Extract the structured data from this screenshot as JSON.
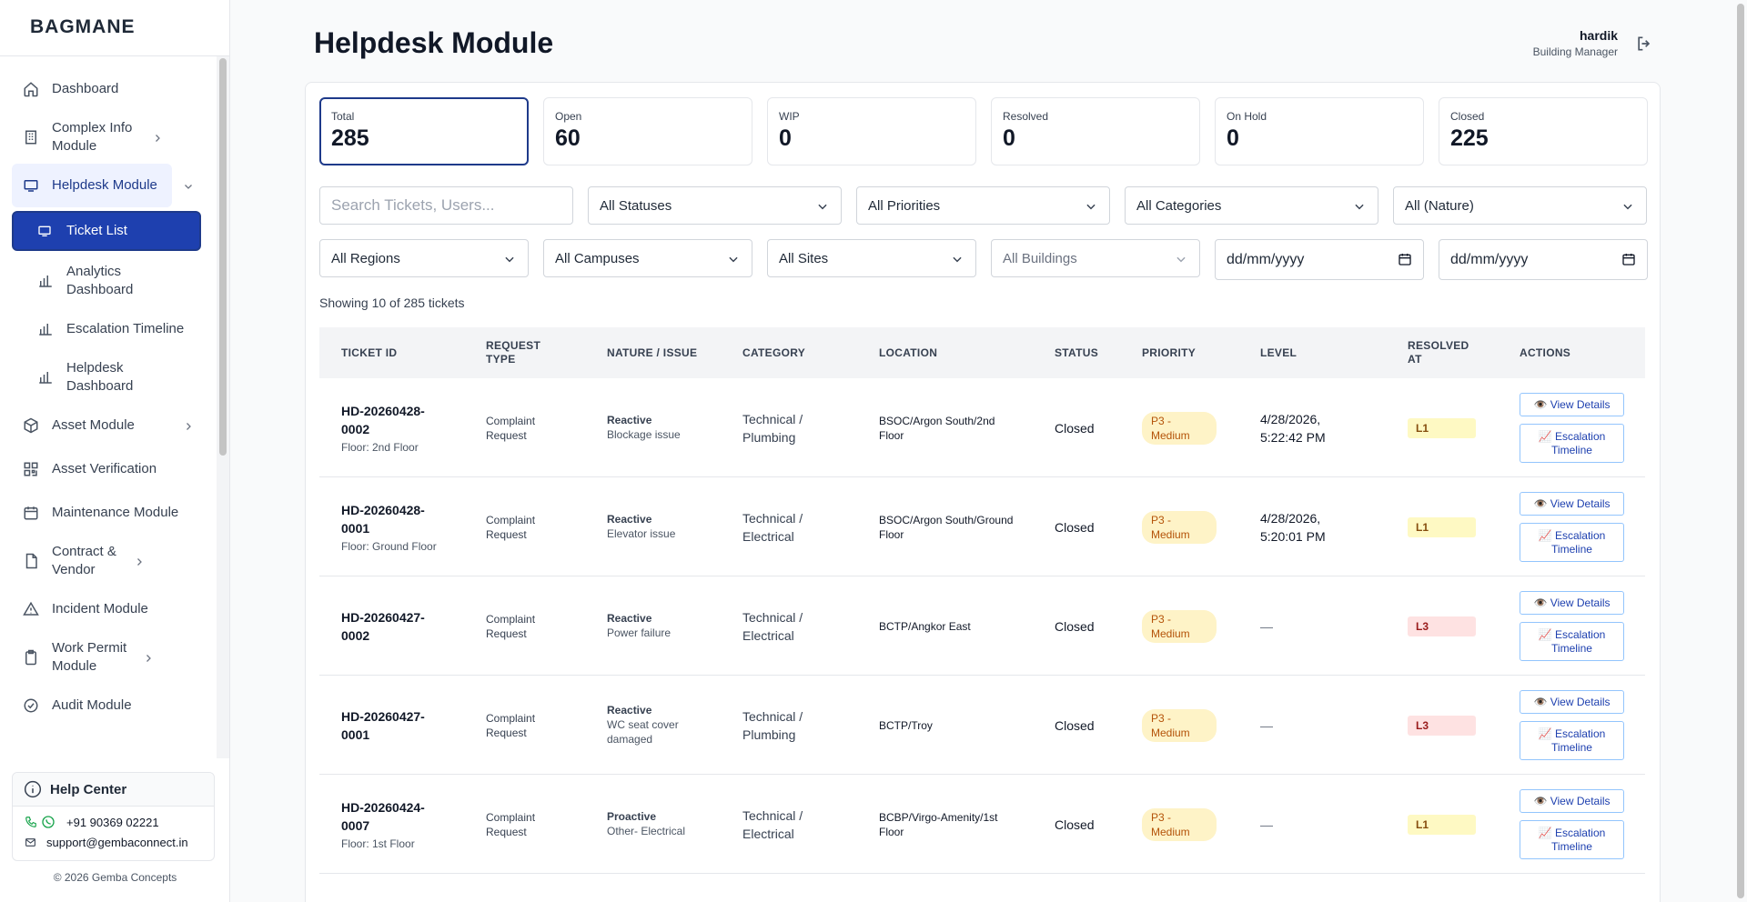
{
  "sidebar": {
    "brand": "BAGMANE",
    "items": [
      {
        "label": "Dashboard"
      },
      {
        "label": "Complex Info Module"
      },
      {
        "label": "Helpdesk Module"
      },
      {
        "label": "Asset Module"
      },
      {
        "label": "Asset Verification"
      },
      {
        "label": "Maintenance Module"
      },
      {
        "label": "Contract & Vendor"
      },
      {
        "label": "Incident Module"
      },
      {
        "label": "Work Permit Module"
      },
      {
        "label": "Audit Module"
      }
    ],
    "sub_items": [
      {
        "label": "Ticket List"
      },
      {
        "label": "Analytics Dashboard"
      },
      {
        "label": "Escalation Timeline"
      },
      {
        "label": "Helpdesk Dashboard"
      }
    ],
    "help": {
      "title": "Help Center",
      "phone": "+91 90369 02221",
      "email": "support@gembaconnect.in"
    },
    "copyright": "© 2026 Gemba Concepts"
  },
  "header": {
    "title": "Helpdesk Module",
    "user_name": "hardik",
    "user_role": "Building Manager"
  },
  "stats": [
    {
      "label": "Total",
      "value": "285"
    },
    {
      "label": "Open",
      "value": "60"
    },
    {
      "label": "WIP",
      "value": "0"
    },
    {
      "label": "Resolved",
      "value": "0"
    },
    {
      "label": "On Hold",
      "value": "0"
    },
    {
      "label": "Closed",
      "value": "225"
    }
  ],
  "filters": {
    "search_placeholder": "Search Tickets, Users...",
    "statuses": "All Statuses",
    "priorities": "All Priorities",
    "categories": "All Categories",
    "nature": "All (Nature)",
    "regions": "All Regions",
    "campuses": "All Campuses",
    "sites": "All Sites",
    "buildings": "All Buildings",
    "date_from": "dd/mm/yyyy",
    "date_to": "dd/mm/yyyy"
  },
  "showing": "Showing 10 of 285 tickets",
  "table": {
    "headers": {
      "ticket_id": "TICKET ID",
      "request_type": "REQUEST TYPE",
      "nature": "NATURE / ISSUE",
      "category": "CATEGORY",
      "location": "LOCATION",
      "status": "STATUS",
      "priority": "PRIORITY",
      "level": "LEVEL",
      "resolved_at": "RESOLVED AT",
      "actions": "ACTIONS"
    },
    "view_label": "👁️ View Details",
    "escalation_label": "📈 Escalation Timeline",
    "rows": [
      {
        "id": "HD-20260428-0002",
        "floor": "Floor: 2nd Floor",
        "type": "Complaint Request",
        "nature": "Reactive",
        "issue": "Blockage issue",
        "category": "Technical / Plumbing",
        "location": "BSOC/Argon South/2nd Floor",
        "status": "Closed",
        "priority": "P3 - Medium",
        "level": "4/28/2026, 5:22:42 PM",
        "resolved": "L1"
      },
      {
        "id": "HD-20260428-0001",
        "floor": "Floor: Ground Floor",
        "type": "Complaint Request",
        "nature": "Reactive",
        "issue": "Elevator issue",
        "category": "Technical / Electrical",
        "location": "BSOC/Argon South/Ground Floor",
        "status": "Closed",
        "priority": "P3 - Medium",
        "level": "4/28/2026, 5:20:01 PM",
        "resolved": "L1"
      },
      {
        "id": "HD-20260427-0002",
        "floor": "",
        "type": "Complaint Request",
        "nature": "Reactive",
        "issue": "Power failure",
        "category": "Technical / Electrical",
        "location": "BCTP/Angkor East",
        "status": "Closed",
        "priority": "P3 - Medium",
        "level": "—",
        "resolved": "L3"
      },
      {
        "id": "HD-20260427-0001",
        "floor": "",
        "type": "Complaint Request",
        "nature": "Reactive",
        "issue": "WC seat cover damaged",
        "category": "Technical / Plumbing",
        "location": "BCTP/Troy",
        "status": "Closed",
        "priority": "P3 - Medium",
        "level": "—",
        "resolved": "L3"
      },
      {
        "id": "HD-20260424-0007",
        "floor": "Floor: 1st Floor",
        "type": "Complaint Request",
        "nature": "Proactive",
        "issue": "Other- Electrical",
        "category": "Technical / Electrical",
        "location": "BCBP/Virgo-Amenity/1st Floor",
        "status": "Closed",
        "priority": "P3 - Medium",
        "level": "—",
        "resolved": "L1"
      }
    ]
  },
  "colors": {
    "accent": "#1e3a8a",
    "active_bg": "#1e40af",
    "priority_bg": "#fef3c7",
    "l1_bg": "#fef9c3",
    "l3_bg": "#fee2e2"
  }
}
